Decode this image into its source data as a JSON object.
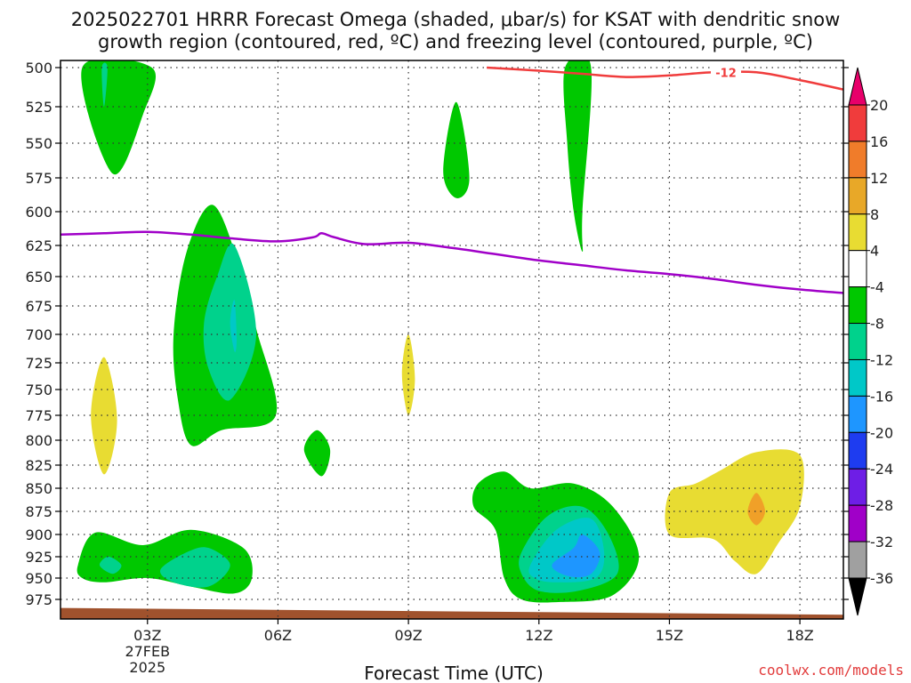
{
  "title_line1": "2025022701 HRRR Forecast Omega (shaded, μbar/s) for KSAT with dendritic snow",
  "title_line2": "growth region (contoured, red, ºC) and freezing level (contoured, purple, ºC)",
  "credit": "coolwx.com/models",
  "chart_data": {
    "type": "contour",
    "title": "2025022701 HRRR Forecast Omega (shaded, μbar/s) for KSAT with dendritic snow growth region (contoured, red, ºC) and freezing level (contoured, purple, ºC)",
    "xlabel": "Forecast Time (UTC)",
    "ylabel": "",
    "x_range_hours": [
      1,
      19
    ],
    "y_range_mb": [
      500,
      1000
    ],
    "y_scale": "pressure (inverted)",
    "grid": "dotted",
    "x_ticks": [
      {
        "h": 3,
        "label": "03Z"
      },
      {
        "h": 6,
        "label": "06Z"
      },
      {
        "h": 9,
        "label": "09Z"
      },
      {
        "h": 12,
        "label": "12Z"
      },
      {
        "h": 15,
        "label": "15Z"
      },
      {
        "h": 18,
        "label": "18Z"
      }
    ],
    "date_label": [
      "27FEB",
      "2025"
    ],
    "y_ticks": [
      500,
      525,
      550,
      575,
      600,
      625,
      650,
      675,
      700,
      725,
      750,
      775,
      800,
      825,
      850,
      875,
      900,
      925,
      950,
      975
    ],
    "colorbar": {
      "labels": [
        "20",
        "16",
        "12",
        "8",
        "4",
        "-4",
        "-8",
        "-12",
        "-16",
        "-20",
        "-24",
        "-28",
        "-32",
        "-36"
      ],
      "colors": [
        "#e8006a",
        "#f03c3c",
        "#f07c2a",
        "#e8a828",
        "#e8dc32",
        "#ffffff",
        "#00c800",
        "#00d28c",
        "#00c8c8",
        "#1e96ff",
        "#1e3cf0",
        "#6e1ee6",
        "#a000c8",
        "#a0a0a0",
        "#000000"
      ]
    },
    "shaded_regions": [
      {
        "level": "-4",
        "color": "#00c800",
        "points": [
          [
            1.5,
            500
          ],
          [
            2.2,
            572
          ],
          [
            2.9,
            530
          ],
          [
            3.1,
            500
          ]
        ]
      },
      {
        "level": "-8",
        "color": "#00d28c",
        "points": [
          [
            1.95,
            500
          ],
          [
            2.0,
            525
          ],
          [
            2.08,
            500
          ]
        ]
      },
      {
        "level": "-4",
        "color": "#00c800",
        "points": [
          [
            3.6,
            700
          ],
          [
            3.9,
            630
          ],
          [
            4.5,
            595
          ],
          [
            5.1,
            640
          ],
          [
            5.5,
            695
          ],
          [
            5.95,
            775
          ],
          [
            4.7,
            790
          ],
          [
            4.0,
            805
          ],
          [
            3.7,
            760
          ]
        ]
      },
      {
        "level": "-8",
        "color": "#00d28c",
        "points": [
          [
            4.3,
            690
          ],
          [
            4.6,
            650
          ],
          [
            5.0,
            625
          ],
          [
            5.5,
            700
          ],
          [
            4.9,
            760
          ],
          [
            4.4,
            730
          ]
        ]
      },
      {
        "level": "-12",
        "color": "#00c8c8",
        "points": [
          [
            4.9,
            690
          ],
          [
            5.0,
            670
          ],
          [
            5.05,
            705
          ],
          [
            5.0,
            715
          ]
        ]
      },
      {
        "level": "4",
        "color": "#e8dc32",
        "points": [
          [
            1.7,
            775
          ],
          [
            2.0,
            720
          ],
          [
            2.3,
            780
          ],
          [
            2.0,
            835
          ]
        ]
      },
      {
        "level": "-4",
        "color": "#00c800",
        "points": [
          [
            9.8,
            570
          ],
          [
            10.1,
            522
          ],
          [
            10.4,
            575
          ],
          [
            10.1,
            590
          ]
        ]
      },
      {
        "level": "-4",
        "color": "#00c800",
        "points": [
          [
            12.6,
            500
          ],
          [
            13.2,
            500
          ],
          [
            13.0,
            600
          ],
          [
            13.0,
            630
          ],
          [
            12.8,
            600
          ],
          [
            12.65,
            550
          ]
        ]
      },
      {
        "level": "4",
        "color": "#e8dc32",
        "points": [
          [
            8.85,
            735
          ],
          [
            9.0,
            700
          ],
          [
            9.15,
            740
          ],
          [
            9.0,
            775
          ]
        ]
      },
      {
        "level": "-4",
        "color": "#00c800",
        "points": [
          [
            6.6,
            810
          ],
          [
            6.9,
            790
          ],
          [
            7.2,
            810
          ],
          [
            7.0,
            837
          ]
        ]
      },
      {
        "level": "-4",
        "color": "#00c800",
        "points": [
          [
            1.4,
            935
          ],
          [
            1.8,
            898
          ],
          [
            2.9,
            912
          ],
          [
            4.0,
            895
          ],
          [
            5.2,
            915
          ],
          [
            5.4,
            950
          ],
          [
            5.0,
            968
          ],
          [
            4.0,
            960
          ],
          [
            3.0,
            950
          ],
          [
            2.0,
            955
          ],
          [
            1.5,
            950
          ]
        ]
      },
      {
        "level": "-8",
        "color": "#00d28c",
        "points": [
          [
            1.9,
            935
          ],
          [
            2.1,
            925
          ],
          [
            2.4,
            935
          ],
          [
            2.2,
            945
          ]
        ]
      },
      {
        "level": "-8",
        "color": "#00d28c",
        "points": [
          [
            3.3,
            940
          ],
          [
            3.9,
            920
          ],
          [
            4.4,
            915
          ],
          [
            4.9,
            935
          ],
          [
            4.4,
            960
          ],
          [
            3.6,
            955
          ]
        ]
      },
      {
        "level": "-4",
        "color": "#00c800",
        "points": [
          [
            10.5,
            870
          ],
          [
            10.6,
            845
          ],
          [
            11.2,
            832
          ],
          [
            11.8,
            850
          ],
          [
            12.8,
            845
          ],
          [
            13.7,
            870
          ],
          [
            14.3,
            925
          ],
          [
            13.7,
            970
          ],
          [
            12.5,
            978
          ],
          [
            11.6,
            975
          ],
          [
            11.2,
            950
          ],
          [
            11.0,
            895
          ]
        ]
      },
      {
        "level": "-8",
        "color": "#00d28c",
        "points": [
          [
            11.6,
            920
          ],
          [
            12.2,
            880
          ],
          [
            13.0,
            870
          ],
          [
            13.6,
            900
          ],
          [
            13.8,
            945
          ],
          [
            12.9,
            965
          ],
          [
            12.0,
            965
          ],
          [
            11.6,
            945
          ]
        ]
      },
      {
        "level": "-12",
        "color": "#00c8c8",
        "points": [
          [
            11.8,
            935
          ],
          [
            12.4,
            895
          ],
          [
            13.2,
            883
          ],
          [
            13.5,
            920
          ],
          [
            13.3,
            950
          ],
          [
            12.4,
            955
          ],
          [
            11.9,
            950
          ]
        ]
      },
      {
        "level": "-16",
        "color": "#1e96ff",
        "points": [
          [
            12.3,
            935
          ],
          [
            12.8,
            915
          ],
          [
            13.0,
            900
          ],
          [
            13.4,
            920
          ],
          [
            13.2,
            945
          ],
          [
            12.7,
            948
          ]
        ]
      },
      {
        "level": "4",
        "color": "#e8dc32",
        "points": [
          [
            15.0,
            855
          ],
          [
            15.6,
            845
          ],
          [
            16.2,
            830
          ],
          [
            17.0,
            812
          ],
          [
            18.0,
            815
          ],
          [
            18.0,
            870
          ],
          [
            17.5,
            910
          ],
          [
            17.0,
            945
          ],
          [
            16.5,
            930
          ],
          [
            16.0,
            905
          ],
          [
            15.0,
            900
          ]
        ]
      },
      {
        "level": "8",
        "color": "#f0a028",
        "points": [
          [
            16.8,
            875
          ],
          [
            17.0,
            855
          ],
          [
            17.2,
            875
          ],
          [
            17.0,
            890
          ]
        ]
      }
    ],
    "terrain": {
      "color": "#a0522d",
      "surface_mb": [
        [
          1,
          985
        ],
        [
          19,
          993
        ]
      ]
    },
    "lines": [
      {
        "name": "dendritic snow growth region",
        "color": "#f03c3c",
        "label": "-12",
        "points": [
          [
            10.8,
            500
          ],
          [
            12.0,
            502
          ],
          [
            13.0,
            504
          ],
          [
            14.0,
            506
          ],
          [
            15.0,
            505
          ],
          [
            16.0,
            503
          ],
          [
            17.0,
            503
          ],
          [
            18.0,
            508
          ],
          [
            19.0,
            514
          ]
        ]
      },
      {
        "name": "freezing level",
        "color": "#a000c8",
        "points": [
          [
            1.0,
            617
          ],
          [
            2.0,
            616
          ],
          [
            3.0,
            615
          ],
          [
            4.0,
            617
          ],
          [
            5.0,
            620
          ],
          [
            6.0,
            622
          ],
          [
            6.8,
            619
          ],
          [
            7.0,
            616
          ],
          [
            7.3,
            619
          ],
          [
            8.0,
            624
          ],
          [
            9.0,
            623
          ],
          [
            10.0,
            627
          ],
          [
            11.0,
            632
          ],
          [
            12.0,
            637
          ],
          [
            13.0,
            641
          ],
          [
            14.0,
            645
          ],
          [
            15.0,
            648
          ],
          [
            16.0,
            652
          ],
          [
            17.0,
            657
          ],
          [
            18.0,
            661
          ],
          [
            19.0,
            664
          ]
        ]
      }
    ]
  }
}
